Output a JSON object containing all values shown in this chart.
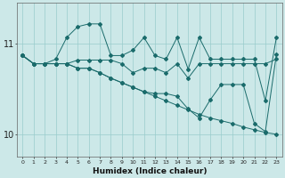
{
  "xlabel": "Humidex (Indice chaleur)",
  "bg_color": "#cce8e8",
  "grid_color": "#99cccc",
  "line_color": "#1a6b6b",
  "x_values": [
    0,
    1,
    2,
    3,
    4,
    5,
    6,
    7,
    8,
    9,
    10,
    11,
    12,
    13,
    14,
    15,
    16,
    17,
    18,
    19,
    20,
    21,
    22,
    23
  ],
  "line1": [
    10.87,
    10.78,
    10.78,
    10.83,
    11.07,
    11.19,
    11.22,
    11.22,
    10.87,
    10.87,
    10.93,
    11.07,
    10.87,
    10.83,
    11.07,
    10.72,
    11.07,
    10.83,
    10.83,
    10.83,
    10.83,
    10.83,
    10.37,
    11.07
  ],
  "line2": [
    10.87,
    10.78,
    10.78,
    10.78,
    10.78,
    10.82,
    10.82,
    10.82,
    10.82,
    10.78,
    10.68,
    10.73,
    10.73,
    10.68,
    10.78,
    10.62,
    10.78,
    10.78,
    10.78,
    10.78,
    10.78,
    10.78,
    10.78,
    10.83
  ],
  "line3": [
    10.87,
    10.78,
    10.78,
    10.78,
    10.78,
    10.73,
    10.73,
    10.68,
    10.62,
    10.57,
    10.52,
    10.47,
    10.42,
    10.37,
    10.32,
    10.27,
    10.22,
    10.18,
    10.15,
    10.12,
    10.08,
    10.05,
    10.02,
    10.0
  ],
  "line4": [
    10.87,
    10.78,
    10.78,
    10.78,
    10.78,
    10.73,
    10.73,
    10.68,
    10.62,
    10.57,
    10.52,
    10.47,
    10.45,
    10.45,
    10.42,
    10.28,
    10.18,
    10.38,
    10.55,
    10.55,
    10.55,
    10.12,
    10.03,
    10.88
  ],
  "ylim": [
    9.75,
    11.45
  ],
  "yticks": [
    10,
    11
  ],
  "xlim": [
    -0.5,
    23.5
  ]
}
